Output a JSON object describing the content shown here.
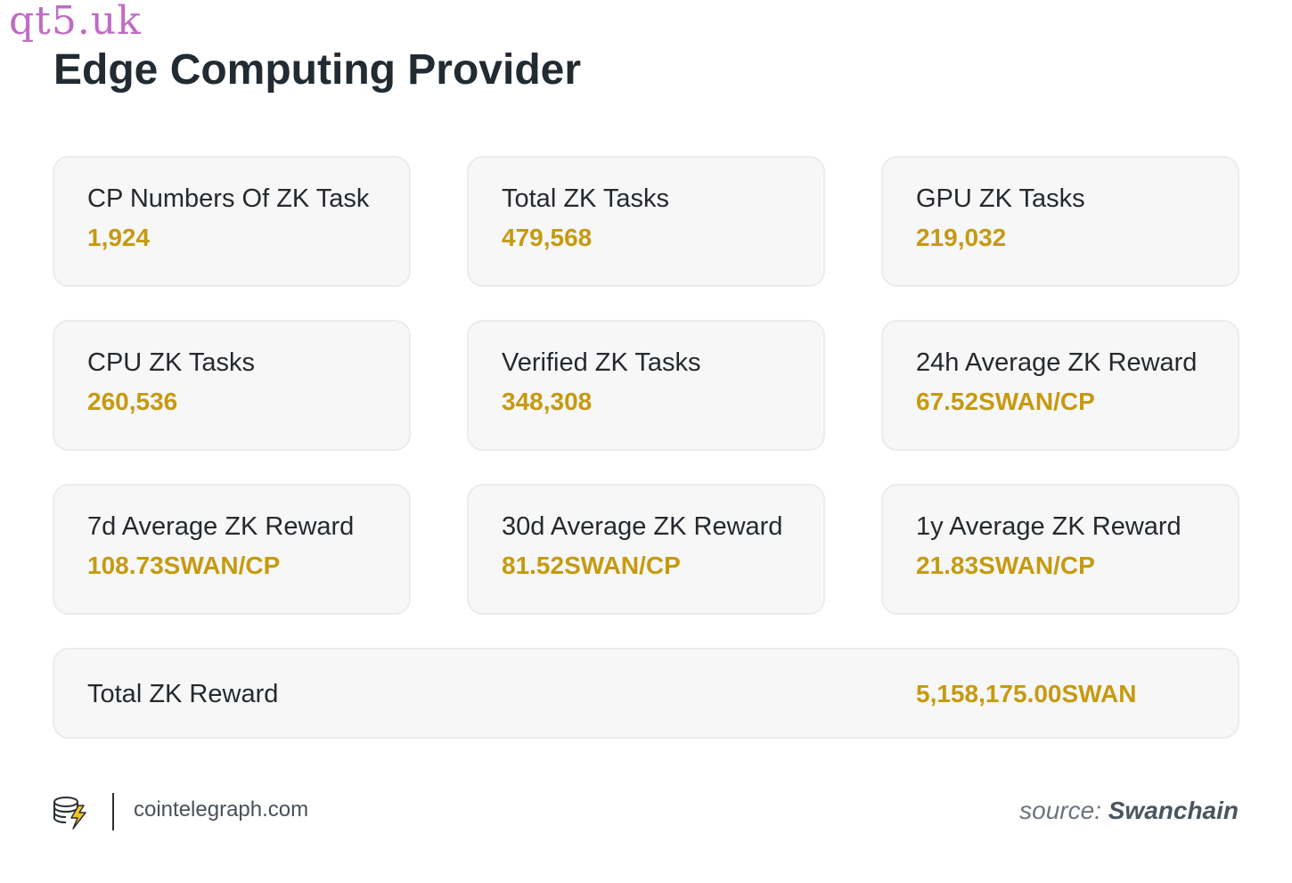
{
  "watermark": "qt5.uk",
  "title": "Edge Computing Provider",
  "cards": [
    {
      "label": "CP Numbers Of ZK Task",
      "value": "1,924"
    },
    {
      "label": "Total ZK Tasks",
      "value": "479,568"
    },
    {
      "label": "GPU ZK Tasks",
      "value": "219,032"
    },
    {
      "label": "CPU ZK Tasks",
      "value": "260,536"
    },
    {
      "label": "Verified ZK Tasks",
      "value": "348,308"
    },
    {
      "label": "24h Average ZK Reward",
      "value": "67.52SWAN/CP"
    },
    {
      "label": "7d Average ZK Reward",
      "value": "108.73SWAN/CP"
    },
    {
      "label": "30d Average ZK Reward",
      "value": "81.52SWAN/CP"
    },
    {
      "label": "1y Average ZK Reward",
      "value": "21.83SWAN/CP"
    }
  ],
  "total": {
    "label": "Total ZK Reward",
    "value": "5,158,175.00SWAN"
  },
  "footer": {
    "site": "cointelegraph.com",
    "source_prefix": "source:",
    "source_name": "Swanchain",
    "logo_icon": "coins-lightning-icon"
  },
  "colors": {
    "value": "#c69a10",
    "title": "#222a32",
    "card_bg": "#f7f7f7",
    "watermark": "#c06bc4"
  }
}
